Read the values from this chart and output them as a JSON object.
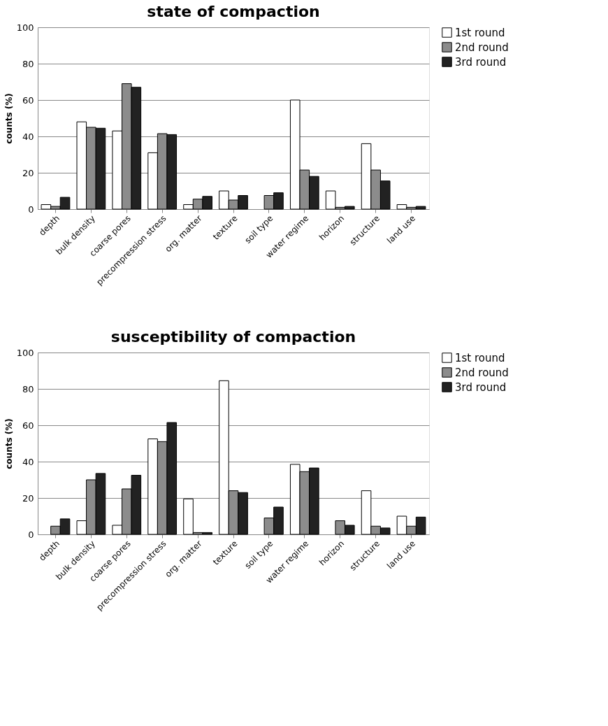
{
  "chart_data": [
    {
      "type": "bar",
      "title": "state of compaction",
      "ylabel": "counts (%)",
      "categories": [
        "depth",
        "bulk density",
        "coarse pores",
        "precompression stress",
        "org. matter",
        "texture",
        "soil type",
        "water regime",
        "horizon",
        "structure",
        "land use"
      ],
      "series": [
        {
          "name": "1st round",
          "color": "#ffffff",
          "values": [
            2.5,
            48,
            43,
            31,
            2.5,
            10,
            null,
            60,
            10,
            36,
            2.5
          ]
        },
        {
          "name": "2nd round",
          "color": "#8c8c8c",
          "values": [
            1.5,
            45,
            69,
            41.5,
            5.5,
            5,
            7.5,
            21.5,
            1,
            21.5,
            1
          ]
        },
        {
          "name": "3rd round",
          "color": "#222222",
          "values": [
            6.5,
            44.5,
            67,
            41,
            7,
            7.5,
            9,
            18,
            1.5,
            15.5,
            1.5
          ]
        }
      ],
      "ylim": [
        0,
        100
      ],
      "yticks": [
        0,
        20,
        40,
        60,
        80,
        100
      ],
      "grid": "y",
      "legend": "right"
    },
    {
      "type": "bar",
      "title": "susceptibility of compaction",
      "ylabel": "counts (%)",
      "categories": [
        "depth",
        "bulk density",
        "coarse pores",
        "precompression stress",
        "org. matter",
        "texture",
        "soil type",
        "water regime",
        "horizon",
        "structure",
        "land use"
      ],
      "series": [
        {
          "name": "1st round",
          "color": "#ffffff",
          "values": [
            null,
            7.5,
            5,
            52.5,
            19.5,
            84.5,
            null,
            38.5,
            null,
            24,
            10
          ]
        },
        {
          "name": "2nd round",
          "color": "#8c8c8c",
          "values": [
            4.5,
            30,
            25,
            51,
            1,
            24,
            9,
            34.5,
            7.5,
            4.5,
            4.5
          ]
        },
        {
          "name": "3rd round",
          "color": "#222222",
          "values": [
            8.5,
            33.5,
            32.5,
            61.5,
            1,
            23,
            15,
            36.5,
            5,
            3.5,
            9.5
          ]
        }
      ],
      "ylim": [
        0,
        100
      ],
      "yticks": [
        0,
        20,
        40,
        60,
        80,
        100
      ],
      "grid": "y",
      "legend": "right"
    }
  ]
}
